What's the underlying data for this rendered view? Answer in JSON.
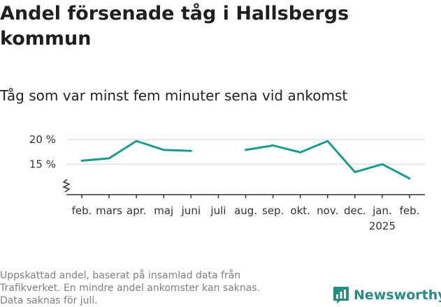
{
  "title": "Andel försenade tåg i Hallsbergs kommun",
  "subtitle": "Tåg som var minst fem minuter sena vid ankomst",
  "footer": {
    "lines": [
      "Uppskattad andel, baserat på insamlad data från",
      "Trafikverket. En mindre andel ankomster kan saknas.",
      "Data saknas för juli."
    ]
  },
  "brand": {
    "name": "Newsworthy",
    "color": "#2a8a84"
  },
  "chart_data": {
    "type": "line",
    "categories": [
      "feb.",
      "mars",
      "apr.",
      "maj",
      "juni",
      "juli",
      "aug.",
      "sep.",
      "okt.",
      "nov.",
      "dec.",
      "jan.",
      "feb."
    ],
    "year_labels": [
      {
        "index": 11,
        "label": "2025"
      }
    ],
    "series": [
      {
        "values": [
          15.7,
          16.2,
          19.7,
          17.9,
          17.7,
          null,
          17.9,
          18.8,
          17.4,
          19.7,
          13.4,
          15.0,
          12.1
        ],
        "color": "#1a9b90"
      }
    ],
    "yticks": [
      15,
      20
    ],
    "ytick_suffix": " %",
    "ylim": [
      11,
      20
    ],
    "axis_break": true,
    "grid": true,
    "xlabel": "",
    "ylabel": ""
  }
}
